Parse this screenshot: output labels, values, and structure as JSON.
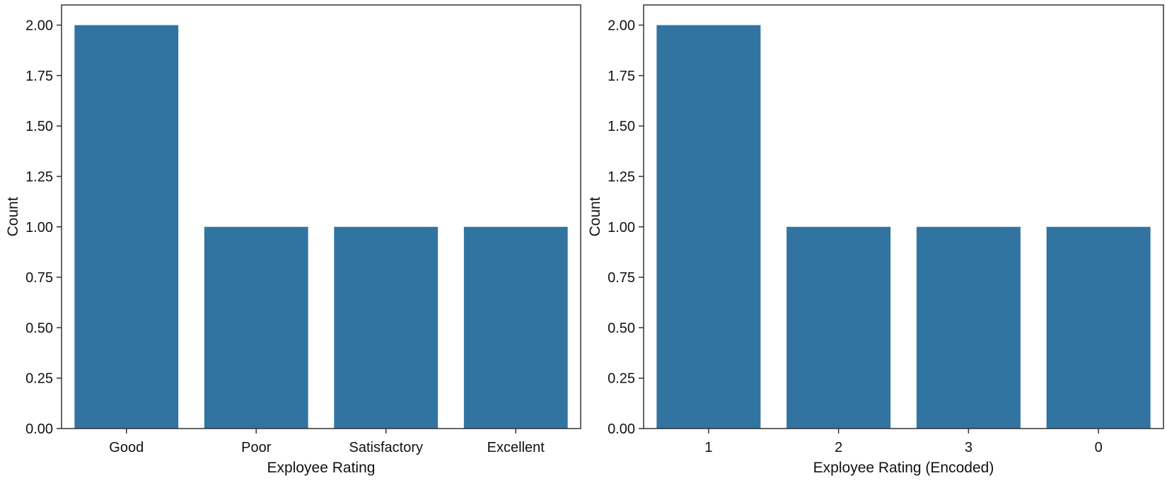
{
  "chart_data": [
    {
      "type": "bar",
      "categories": [
        "Good",
        "Poor",
        "Satisfactory",
        "Excellent"
      ],
      "values": [
        2,
        1,
        1,
        1
      ],
      "xlabel": "Exployee Rating",
      "ylabel": "Count",
      "ylim": [
        0,
        2.1
      ],
      "yticks": [
        "0.00",
        "0.25",
        "0.50",
        "0.75",
        "1.00",
        "1.25",
        "1.50",
        "1.75",
        "2.00"
      ],
      "grid": false,
      "bar_color": "#3274a1"
    },
    {
      "type": "bar",
      "categories": [
        "1",
        "2",
        "3",
        "0"
      ],
      "values": [
        2,
        1,
        1,
        1
      ],
      "xlabel": "Exployee Rating (Encoded)",
      "ylabel": "Count",
      "ylim": [
        0,
        2.1
      ],
      "yticks": [
        "0.00",
        "0.25",
        "0.50",
        "0.75",
        "1.00",
        "1.25",
        "1.50",
        "1.75",
        "2.00"
      ],
      "grid": false,
      "bar_color": "#3274a1"
    }
  ]
}
